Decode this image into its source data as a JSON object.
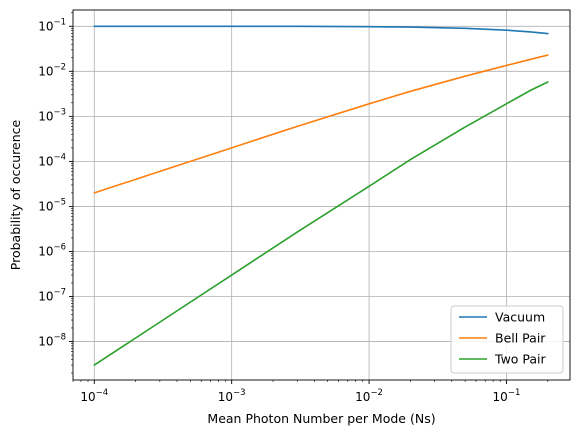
{
  "chart_data": {
    "type": "line",
    "xlabel": "Mean Photon Number per Mode (Ns)",
    "ylabel": "Probability of occurence",
    "xscale": "log",
    "yscale": "log",
    "xlim": [
      7e-05,
      0.29
    ],
    "ylim": [
      1.4e-09,
      0.23
    ],
    "grid": true,
    "legend_position": "lower-right",
    "x_ticks": [
      {
        "value": 0.0001,
        "mantissa": "10",
        "exp": "−4"
      },
      {
        "value": 0.001,
        "mantissa": "10",
        "exp": "−3"
      },
      {
        "value": 0.01,
        "mantissa": "10",
        "exp": "−2"
      },
      {
        "value": 0.1,
        "mantissa": "10",
        "exp": "−1"
      }
    ],
    "y_ticks": [
      {
        "value": 1e-08,
        "mantissa": "10",
        "exp": "−8"
      },
      {
        "value": 1e-07,
        "mantissa": "10",
        "exp": "−7"
      },
      {
        "value": 1e-06,
        "mantissa": "10",
        "exp": "−6"
      },
      {
        "value": 1e-05,
        "mantissa": "10",
        "exp": "−5"
      },
      {
        "value": 0.0001,
        "mantissa": "10",
        "exp": "−4"
      },
      {
        "value": 0.001,
        "mantissa": "10",
        "exp": "−3"
      },
      {
        "value": 0.01,
        "mantissa": "10",
        "exp": "−2"
      },
      {
        "value": 0.1,
        "mantissa": "10",
        "exp": "−1"
      }
    ],
    "x": [
      0.0001,
      0.0003,
      0.001,
      0.003,
      0.01,
      0.02,
      0.05,
      0.1,
      0.15,
      0.2
    ],
    "series": [
      {
        "name": "Vacuum",
        "color": "#1f77b4",
        "values": [
          0.1,
          0.1,
          0.1,
          0.0998,
          0.098,
          0.096,
          0.09,
          0.082,
          0.075,
          0.069
        ]
      },
      {
        "name": "Bell Pair",
        "color": "#ff7f0e",
        "values": [
          2e-05,
          6e-05,
          0.0002,
          0.0006,
          0.0019,
          0.0036,
          0.0078,
          0.0135,
          0.0185,
          0.023
        ]
      },
      {
        "name": "Two Pair",
        "color": "#2ca02c",
        "values": [
          3e-09,
          2.7e-08,
          3e-07,
          2.7e-06,
          2.8e-05,
          0.00011,
          0.00058,
          0.0019,
          0.0038,
          0.0058
        ]
      }
    ]
  }
}
